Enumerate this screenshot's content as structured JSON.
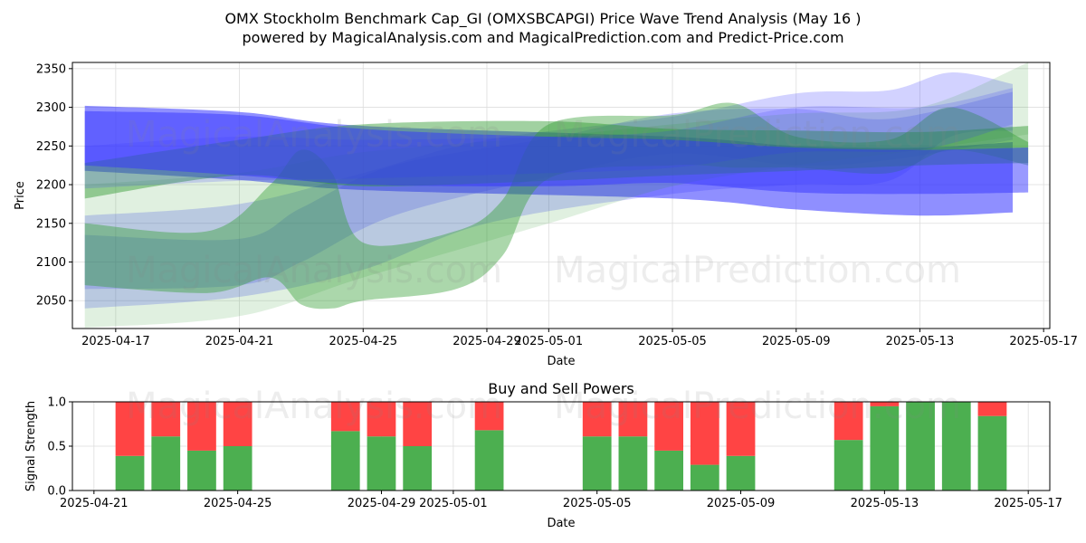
{
  "title_line1": "OMX Stockholm Benchmark Cap_GI (OMXSBCAPGI) Price Wave Trend Analysis (May 16 )",
  "title_line2": "powered by MagicalAnalysis.com and MagicalPrediction.com and Predict-Price.com",
  "watermarks": [
    "MagicalAnalysis.com",
    "MagicalPrediction.com"
  ],
  "colors": {
    "green": "#2e9a2e",
    "blue": "#3333ff",
    "buy": "#4caf50",
    "sell": "#ff4444",
    "grid": "#dddddd"
  },
  "chart_data": [
    {
      "type": "area",
      "title": "",
      "xlabel": "Date",
      "ylabel": "Price",
      "xlim": [
        "2025-04-15.6",
        "2025-05-17.2"
      ],
      "ylim": [
        2014,
        2358
      ],
      "x_ticks": [
        "2025-04-17",
        "2025-04-21",
        "2025-04-25",
        "2025-04-29",
        "2025-05-01",
        "2025-05-05",
        "2025-05-09",
        "2025-05-13",
        "2025-05-17"
      ],
      "y_ticks": [
        2050,
        2100,
        2150,
        2200,
        2250,
        2300,
        2350
      ],
      "grid": true,
      "series": [
        {
          "name": "blue band 1",
          "color": "blue",
          "opacity": 0.55,
          "x": [
            "2025-04-16",
            "2025-04-21",
            "2025-04-25",
            "2025-05-05",
            "2025-05-09",
            "2025-05-13",
            "2025-05-16"
          ],
          "upper": [
            2302,
            2294,
            2276,
            2262,
            2250,
            2248,
            2255
          ],
          "lower": [
            2218,
            2206,
            2193,
            2182,
            2168,
            2160,
            2164
          ]
        },
        {
          "name": "blue band 2",
          "color": "blue",
          "opacity": 0.22,
          "x": [
            "2025-04-16",
            "2025-04-21",
            "2025-04-25",
            "2025-04-29",
            "2025-05-05",
            "2025-05-09",
            "2025-05-12",
            "2025-05-14",
            "2025-05-16"
          ],
          "upper": [
            2160,
            2175,
            2215,
            2258,
            2288,
            2318,
            2322,
            2345,
            2330
          ],
          "lower": [
            2040,
            2055,
            2090,
            2150,
            2188,
            2200,
            2205,
            2262,
            2270
          ]
        },
        {
          "name": "blue band 3",
          "color": "blue",
          "opacity": 0.22,
          "x": [
            "2025-04-16",
            "2025-04-21",
            "2025-04-23",
            "2025-04-26",
            "2025-05-01",
            "2025-05-05",
            "2025-05-09",
            "2025-05-12",
            "2025-05-16"
          ],
          "upper": [
            2135,
            2130,
            2170,
            2225,
            2260,
            2292,
            2298,
            2285,
            2320
          ],
          "lower": [
            2065,
            2070,
            2100,
            2160,
            2210,
            2240,
            2225,
            2232,
            2258
          ]
        },
        {
          "name": "green band 1",
          "color": "green",
          "opacity": 0.45,
          "x": [
            "2025-04-16",
            "2025-04-21",
            "2025-04-25",
            "2025-05-01",
            "2025-05-05",
            "2025-05-09",
            "2025-05-13",
            "2025-05-16.5"
          ],
          "upper": [
            2228,
            2258,
            2278,
            2282,
            2272,
            2270,
            2268,
            2276
          ],
          "lower": [
            2182,
            2212,
            2198,
            2205,
            2212,
            2218,
            2225,
            2228
          ]
        },
        {
          "name": "green band 2",
          "color": "green",
          "opacity": 0.4,
          "x": [
            "2025-04-16",
            "2025-04-20",
            "2025-04-22",
            "2025-04-23",
            "2025-04-24",
            "2025-04-25",
            "2025-04-28",
            "2025-04-29.5",
            "2025-05-01",
            "2025-05-05",
            "2025-05-07",
            "2025-05-09",
            "2025-05-12",
            "2025-05-14",
            "2025-05-16.5"
          ],
          "upper": [
            2150,
            2140,
            2200,
            2245,
            2215,
            2125,
            2140,
            2180,
            2278,
            2290,
            2305,
            2262,
            2258,
            2300,
            2255
          ],
          "lower": [
            2070,
            2060,
            2080,
            2045,
            2040,
            2050,
            2065,
            2108,
            2208,
            2225,
            2222,
            2222,
            2215,
            2245,
            2225
          ]
        },
        {
          "name": "green band 3",
          "color": "green",
          "opacity": 0.15,
          "x": [
            "2025-04-16",
            "2025-04-21",
            "2025-04-25",
            "2025-05-01",
            "2025-05-05",
            "2025-05-09",
            "2025-05-13",
            "2025-05-16.5"
          ],
          "upper": [
            2200,
            2215,
            2242,
            2262,
            2278,
            2292,
            2300,
            2358
          ],
          "lower": [
            2015,
            2030,
            2080,
            2150,
            2198,
            2225,
            2245,
            2265
          ]
        },
        {
          "name": "blue band 4",
          "color": "blue",
          "opacity": 0.18,
          "x": [
            "2025-04-16",
            "2025-04-21",
            "2025-04-25",
            "2025-05-01",
            "2025-05-05",
            "2025-05-09",
            "2025-05-13",
            "2025-05-16"
          ],
          "upper": [
            2250,
            2262,
            2258,
            2262,
            2270,
            2300,
            2300,
            2325
          ],
          "lower": [
            2195,
            2205,
            2208,
            2215,
            2222,
            2242,
            2245,
            2278
          ]
        },
        {
          "name": "blue band 5",
          "color": "blue",
          "opacity": 0.5,
          "x": [
            "2025-04-16",
            "2025-04-21",
            "2025-04-25",
            "2025-05-01",
            "2025-05-05",
            "2025-05-09",
            "2025-05-13",
            "2025-05-16.5"
          ],
          "upper": [
            2295,
            2290,
            2272,
            2262,
            2258,
            2248,
            2245,
            2248
          ],
          "lower": [
            2225,
            2212,
            2200,
            2198,
            2202,
            2190,
            2188,
            2190
          ]
        }
      ]
    },
    {
      "type": "bar",
      "stacked": true,
      "title": "Buy and Sell Powers",
      "xlabel": "Date",
      "ylabel": "Signal Strength",
      "xlim": [
        "2025-04-20.4",
        "2025-05-17.6"
      ],
      "ylim": [
        0,
        1.0
      ],
      "x_ticks": [
        "2025-04-21",
        "2025-04-25",
        "2025-04-29",
        "2025-05-01",
        "2025-05-05",
        "2025-05-09",
        "2025-05-13",
        "2025-05-17"
      ],
      "y_ticks": [
        0.0,
        0.5,
        1.0
      ],
      "grid": true,
      "dates": [
        "2025-04-22",
        "2025-04-23",
        "2025-04-24",
        "2025-04-25",
        "2025-04-28",
        "2025-04-29",
        "2025-04-30",
        "2025-05-02",
        "2025-05-05",
        "2025-05-06",
        "2025-05-07",
        "2025-05-08",
        "2025-05-09",
        "2025-05-12",
        "2025-05-13",
        "2025-05-14",
        "2025-05-15",
        "2025-05-16"
      ],
      "series": [
        {
          "name": "Buy",
          "color": "buy",
          "values": [
            0.39,
            0.61,
            0.45,
            0.5,
            0.67,
            0.61,
            0.5,
            0.68,
            0.61,
            0.61,
            0.45,
            0.29,
            0.39,
            0.57,
            0.95,
            1.0,
            1.0,
            0.84
          ]
        },
        {
          "name": "Sell",
          "color": "sell",
          "values": [
            0.61,
            0.39,
            0.55,
            0.5,
            0.33,
            0.39,
            0.5,
            0.32,
            0.39,
            0.39,
            0.55,
            0.71,
            0.61,
            0.43,
            0.05,
            0.0,
            0.0,
            0.16
          ]
        }
      ]
    }
  ]
}
